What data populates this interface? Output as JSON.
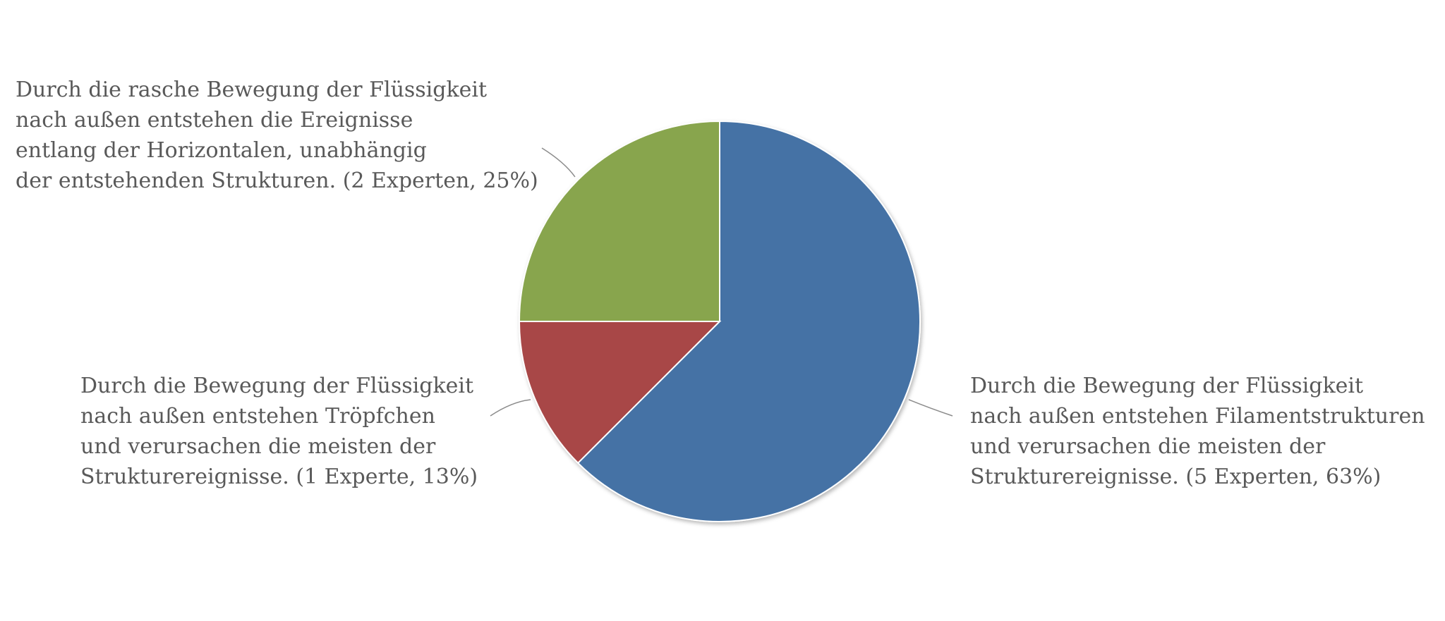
{
  "chart_data": {
    "type": "pie",
    "start_angle_deg": 0,
    "direction": "clockwise",
    "slices": [
      {
        "lines": [
          "Durch die Bewegung der Flüssigkeit",
          "nach außen entstehen Filamentstrukturen",
          "und verursachen die meisten der",
          "Strukturereignisse. (5 Experten, 63%)"
        ],
        "experts": 5,
        "percent": 63,
        "color": "#4472a5"
      },
      {
        "lines": [
          "Durch die Bewegung der Flüssigkeit",
          "nach außen entstehen Tröpfchen",
          "und verursachen die meisten der",
          "Strukturereignisse. (1 Experte, 13%)"
        ],
        "experts": 1,
        "percent": 13,
        "color": "#a84746"
      },
      {
        "lines": [
          "Durch die rasche Bewegung der Flüssigkeit",
          "nach außen entstehen die Ereignisse",
          "entlang der Horizontalen, unabhängig",
          "der entstehenden Strukturen. (2 Experten, 25%)"
        ],
        "experts": 2,
        "percent": 25,
        "color": "#88a54e"
      }
    ],
    "legend": "none",
    "leader_lines": true
  }
}
